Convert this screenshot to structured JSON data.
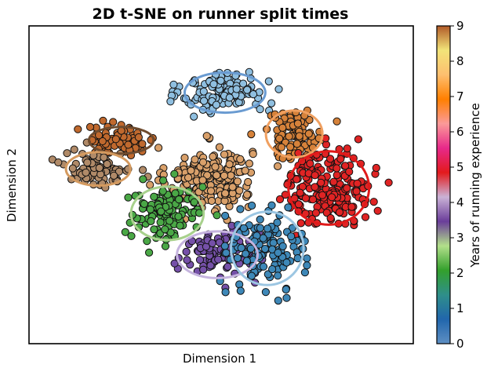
{
  "chart_data": {
    "type": "scatter",
    "title": "2D t-SNE on runner split times",
    "xlabel": "Dimension 1",
    "ylabel": "Dimension 2",
    "xlim": [
      0,
      100
    ],
    "ylim": [
      0,
      100
    ],
    "grid": false,
    "axis_ticks": false,
    "colorbar": {
      "label": "Years of running experience",
      "range": [
        0,
        9
      ],
      "ticks": [
        0,
        1,
        2,
        3,
        4,
        5,
        6,
        7,
        8,
        9
      ],
      "colormap": [
        "#5e8fc3",
        "#2166ac",
        "#2f8f8a",
        "#33a02c",
        "#b2df8a",
        "#6a3d9a",
        "#cab2d6",
        "#e31a1c",
        "#e7298a",
        "#fb9a99",
        "#ff7f00",
        "#fdbf6f",
        "#f2e479",
        "#b15928"
      ],
      "position": "right"
    },
    "clusters": [
      {
        "name": "",
        "value": 1,
        "x": 51,
        "y": 79,
        "rx": 10,
        "ry": 6,
        "n": 130,
        "color": "#8fbfe0",
        "ring": "#6a9bd1"
      },
      {
        "name": "",
        "value": 9,
        "x": 24,
        "y": 64,
        "rx": 8,
        "ry": 4,
        "n": 90,
        "color": "#c0692e",
        "ring": "#6e4b2e"
      },
      {
        "name": "",
        "value": 6,
        "x": 18,
        "y": 55,
        "rx": 8,
        "ry": 5,
        "n": 90,
        "color": "#b08a68",
        "ring": "#d49a5f"
      },
      {
        "name": "",
        "value": 6,
        "x": 69,
        "y": 66,
        "rx": 7,
        "ry": 7,
        "n": 90,
        "color": "#d6823a",
        "ring": "#f0a060"
      },
      {
        "name": "",
        "value": 4,
        "x": 78,
        "y": 49,
        "rx": 10,
        "ry": 11,
        "n": 200,
        "color": "#e02424",
        "ring": "#e01a1a"
      },
      {
        "name": "",
        "value": 2,
        "x": 36,
        "y": 41,
        "rx": 9,
        "ry": 8,
        "n": 120,
        "color": "#4aa846",
        "ring": "#a8d18c"
      },
      {
        "name": "",
        "value": 7,
        "x": 49,
        "y": 28,
        "rx": 10,
        "ry": 7,
        "n": 100,
        "color": "#7550a8",
        "ring": "#c5b4de"
      },
      {
        "name": "",
        "value": 1,
        "x": 62,
        "y": 30,
        "rx": 9,
        "ry": 11,
        "n": 130,
        "color": "#3e88b8",
        "ring": "#9cc6e2"
      },
      {
        "name": "",
        "value": 5,
        "x": 47,
        "y": 52,
        "rx": 10,
        "ry": 9,
        "n": 220,
        "color": "#d9a06a",
        "ring": ""
      }
    ],
    "ellipses_drawn": 8
  }
}
